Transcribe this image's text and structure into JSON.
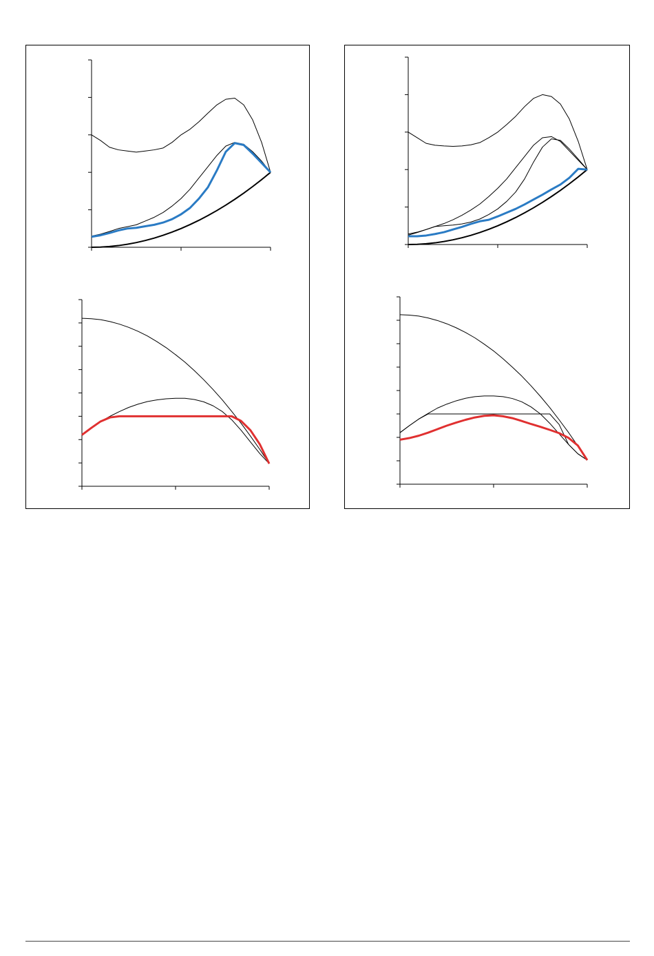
{
  "chart_data": [
    {
      "type": "line",
      "x": [
        0,
        0.1,
        0.2,
        0.3,
        0.4,
        0.5,
        0.6,
        0.7,
        0.8,
        0.9,
        1,
        1.1,
        1.2,
        1.3,
        1.4,
        1.5,
        1.6,
        1.7,
        1.8,
        1.9,
        2
      ],
      "xlim": [
        0,
        2
      ],
      "xticks": [
        0,
        1,
        2
      ],
      "ylim": [
        0,
        5
      ],
      "yticks": [
        0,
        1,
        2,
        3,
        4,
        5
      ],
      "series": [
        {
          "color": "#000000",
          "line_width": 1,
          "values": [
            3.0,
            2.85,
            2.67,
            2.6,
            2.57,
            2.54,
            2.57,
            2.6,
            2.65,
            2.8,
            3.0,
            3.15,
            3.35,
            3.58,
            3.8,
            3.95,
            3.98,
            3.8,
            3.4,
            2.8,
            2.0
          ]
        },
        {
          "color": "#000000",
          "line_width": 1,
          "values": [
            0.3,
            0.35,
            0.42,
            0.5,
            0.55,
            0.6,
            0.7,
            0.8,
            0.93,
            1.1,
            1.3,
            1.55,
            1.85,
            2.15,
            2.45,
            2.7,
            2.8,
            2.75,
            2.55,
            2.3,
            2.0
          ]
        },
        {
          "color": "#000000",
          "line_width": 2,
          "values": [
            0,
            0.005,
            0.02,
            0.045,
            0.08,
            0.125,
            0.18,
            0.245,
            0.32,
            0.405,
            0.5,
            0.605,
            0.72,
            0.845,
            0.98,
            1.125,
            1.28,
            1.445,
            1.62,
            1.805,
            2.0
          ]
        },
        {
          "color": "#2a7bc4",
          "line_width": 3,
          "values": [
            0.28,
            0.32,
            0.38,
            0.45,
            0.5,
            0.52,
            0.56,
            0.6,
            0.66,
            0.75,
            0.88,
            1.05,
            1.3,
            1.6,
            2.05,
            2.55,
            2.78,
            2.73,
            2.5,
            2.25,
            2.0
          ]
        }
      ]
    },
    {
      "type": "line",
      "x": [
        0,
        0.1,
        0.2,
        0.3,
        0.4,
        0.5,
        0.6,
        0.7,
        0.8,
        0.9,
        1,
        1.1,
        1.2,
        1.3,
        1.4,
        1.5,
        1.6,
        1.7,
        1.8,
        1.9,
        2
      ],
      "xlim": [
        0,
        2
      ],
      "xticks": [
        0,
        1,
        2
      ],
      "ylim": [
        0,
        5
      ],
      "yticks": [
        0,
        1,
        2,
        3,
        4,
        5
      ],
      "series": [
        {
          "color": "#000000",
          "line_width": 1,
          "values": [
            3.0,
            2.85,
            2.7,
            2.65,
            2.63,
            2.62,
            2.63,
            2.66,
            2.72,
            2.85,
            3.0,
            3.2,
            3.42,
            3.68,
            3.9,
            4.0,
            3.95,
            3.75,
            3.35,
            2.75,
            2.0
          ]
        },
        {
          "color": "#000000",
          "line_width": 1,
          "values": [
            0.28,
            0.33,
            0.4,
            0.48,
            0.56,
            0.66,
            0.78,
            0.92,
            1.08,
            1.28,
            1.5,
            1.75,
            2.05,
            2.35,
            2.65,
            2.85,
            2.88,
            2.75,
            2.5,
            2.25,
            2.0
          ]
        },
        {
          "color": "#000000",
          "line_width": 1,
          "values": [
            0.25,
            0.32,
            0.4,
            0.48,
            0.5,
            0.52,
            0.55,
            0.6,
            0.68,
            0.8,
            0.95,
            1.15,
            1.4,
            1.75,
            2.2,
            2.6,
            2.82,
            2.78,
            2.55,
            2.28,
            2.0
          ]
        },
        {
          "color": "#000000",
          "line_width": 2,
          "values": [
            0,
            0.005,
            0.02,
            0.045,
            0.08,
            0.125,
            0.18,
            0.245,
            0.32,
            0.405,
            0.5,
            0.605,
            0.72,
            0.845,
            0.98,
            1.125,
            1.28,
            1.445,
            1.62,
            1.805,
            2.0
          ]
        },
        {
          "color": "#2a7bc4",
          "line_width": 3,
          "values": [
            0.22,
            0.22,
            0.24,
            0.28,
            0.33,
            0.4,
            0.47,
            0.55,
            0.62,
            0.66,
            0.75,
            0.85,
            0.95,
            1.07,
            1.2,
            1.33,
            1.47,
            1.6,
            1.78,
            2.02,
            2.0
          ]
        }
      ]
    },
    {
      "type": "line",
      "x": [
        0,
        0.1,
        0.2,
        0.3,
        0.4,
        0.5,
        0.6,
        0.7,
        0.8,
        0.9,
        1,
        1.1,
        1.2,
        1.3,
        1.4,
        1.5,
        1.6,
        1.7,
        1.8,
        1.9,
        2
      ],
      "xlim": [
        0,
        2
      ],
      "xticks": [
        0,
        1,
        2
      ],
      "ylim": [
        0,
        8
      ],
      "yticks": [
        0,
        1,
        2,
        3,
        4,
        5,
        6,
        7,
        8
      ],
      "series": [
        {
          "color": "#000000",
          "line_width": 1,
          "values": [
            7.2,
            7.18,
            7.14,
            7.06,
            6.95,
            6.81,
            6.64,
            6.44,
            6.2,
            5.94,
            5.64,
            5.32,
            4.96,
            4.57,
            4.15,
            3.7,
            3.21,
            2.7,
            2.15,
            1.58,
            0.97
          ]
        },
        {
          "color": "#000000",
          "line_width": 1,
          "values": [
            2.2,
            2.5,
            2.78,
            3.0,
            3.2,
            3.38,
            3.52,
            3.63,
            3.7,
            3.75,
            3.77,
            3.77,
            3.72,
            3.62,
            3.45,
            3.2,
            2.85,
            2.4,
            1.9,
            1.4,
            0.97
          ]
        },
        {
          "color": "#e03030",
          "line_width": 3,
          "values": [
            2.2,
            2.5,
            2.78,
            2.95,
            3.0,
            3.0,
            3.0,
            3.0,
            3.0,
            3.0,
            3.0,
            3.0,
            3.0,
            3.0,
            3.0,
            3.0,
            3.0,
            2.8,
            2.4,
            1.8,
            0.97
          ]
        }
      ]
    },
    {
      "type": "line",
      "x": [
        0,
        0.1,
        0.2,
        0.3,
        0.4,
        0.5,
        0.6,
        0.7,
        0.8,
        0.9,
        1,
        1.1,
        1.2,
        1.3,
        1.4,
        1.5,
        1.6,
        1.7,
        1.8,
        1.9,
        2
      ],
      "xlim": [
        0,
        2
      ],
      "xticks": [
        0,
        1,
        2
      ],
      "ylim": [
        0,
        8
      ],
      "yticks": [
        0,
        1,
        2,
        3,
        4,
        5,
        6,
        7,
        8
      ],
      "series": [
        {
          "color": "#000000",
          "line_width": 1,
          "values": [
            7.24,
            7.22,
            7.18,
            7.1,
            6.99,
            6.85,
            6.68,
            6.48,
            6.25,
            5.98,
            5.69,
            5.36,
            5.0,
            4.62,
            4.2,
            3.75,
            3.27,
            2.75,
            2.21,
            1.63,
            1.03
          ]
        },
        {
          "color": "#000000",
          "line_width": 1,
          "values": [
            2.2,
            2.5,
            2.78,
            3.02,
            3.25,
            3.42,
            3.56,
            3.67,
            3.74,
            3.77,
            3.77,
            3.74,
            3.66,
            3.52,
            3.3,
            3.0,
            2.6,
            2.15,
            1.7,
            1.3,
            1.03
          ]
        },
        {
          "color": "#000000",
          "line_width": 1,
          "values": [
            2.2,
            2.5,
            2.78,
            3.0,
            3.0,
            3.0,
            3.0,
            3.0,
            3.0,
            3.0,
            3.0,
            3.0,
            3.0,
            3.0,
            3.0,
            3.0,
            3.0,
            2.55,
            1.7,
            1.3,
            1.03
          ]
        },
        {
          "color": "#e03030",
          "line_width": 3,
          "values": [
            1.9,
            1.97,
            2.07,
            2.2,
            2.35,
            2.5,
            2.63,
            2.75,
            2.85,
            2.92,
            2.94,
            2.9,
            2.82,
            2.7,
            2.57,
            2.45,
            2.32,
            2.18,
            1.98,
            1.65,
            1.03
          ]
        }
      ]
    }
  ]
}
